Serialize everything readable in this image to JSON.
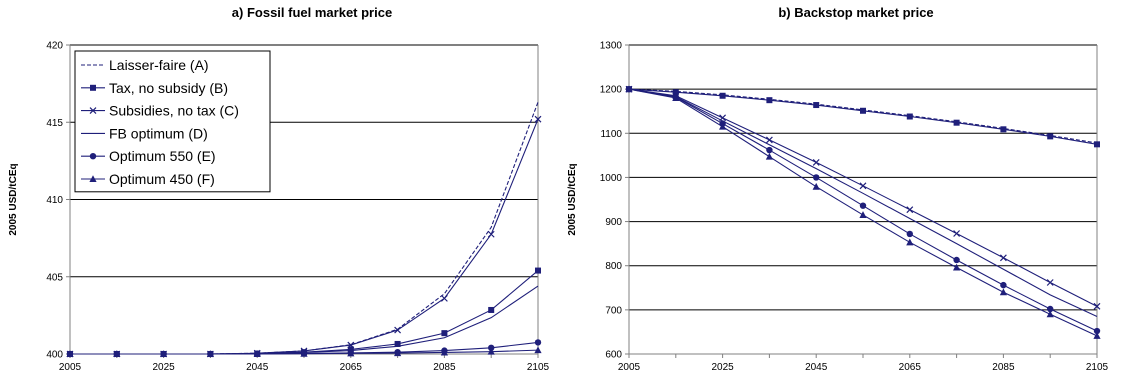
{
  "chart_data": [
    {
      "type": "line",
      "title": "a) Fossil fuel market price",
      "ylabel": "2005 USD/tCEq",
      "xlabel": "",
      "ylim": [
        400,
        420
      ],
      "yticks": [
        400,
        405,
        410,
        415,
        420
      ],
      "xticks": [
        2005,
        2025,
        2045,
        2065,
        2085,
        2105
      ],
      "grid": "horizontal",
      "legend_position": "top-left",
      "x": [
        2005,
        2015,
        2025,
        2035,
        2045,
        2055,
        2065,
        2075,
        2085,
        2095,
        2105
      ],
      "series": [
        {
          "name": "Laisser-faire (A)",
          "style": "dashed",
          "marker": "none",
          "values": [
            400,
            400,
            400,
            400,
            400.05,
            400.2,
            400.6,
            401.6,
            403.9,
            408.2,
            416.3
          ]
        },
        {
          "name": "Tax, no subsidy (B)",
          "style": "solid",
          "marker": "square",
          "values": [
            400,
            400,
            400,
            400,
            400.03,
            400.12,
            400.3,
            400.65,
            401.35,
            402.85,
            405.4
          ]
        },
        {
          "name": "Subsidies, no tax (C)",
          "style": "solid",
          "marker": "x",
          "values": [
            400,
            400,
            400,
            400,
            400.05,
            400.2,
            400.58,
            401.55,
            403.6,
            407.75,
            415.2
          ]
        },
        {
          "name": "FB optimum (D)",
          "style": "solid",
          "marker": "none",
          "values": [
            400,
            400,
            400,
            400,
            400.02,
            400.1,
            400.22,
            400.5,
            401.05,
            402.35,
            404.4
          ]
        },
        {
          "name": "Optimum 550 (E)",
          "style": "solid",
          "marker": "circle",
          "values": [
            400,
            400,
            400,
            400,
            400.01,
            400.04,
            400.07,
            400.12,
            400.22,
            400.4,
            400.75
          ]
        },
        {
          "name": "Optimum 450 (F)",
          "style": "solid",
          "marker": "triangle",
          "values": [
            400,
            400,
            400,
            400,
            400,
            400.02,
            400.04,
            400.06,
            400.1,
            400.15,
            400.25
          ]
        }
      ]
    },
    {
      "type": "line",
      "title": "b) Backstop market price",
      "ylabel": "2005 USD/tCEq",
      "xlabel": "",
      "ylim": [
        600,
        1300
      ],
      "yticks": [
        600,
        700,
        800,
        900,
        1000,
        1100,
        1200,
        1300
      ],
      "xticks": [
        2005,
        2025,
        2045,
        2065,
        2085,
        2105
      ],
      "grid": "horizontal",
      "x": [
        2005,
        2015,
        2025,
        2035,
        2045,
        2055,
        2065,
        2075,
        2085,
        2095,
        2105
      ],
      "series": [
        {
          "style": "dashed",
          "marker": "none",
          "values": [
            1200,
            1195,
            1187,
            1177,
            1166,
            1153,
            1140,
            1126,
            1111,
            1095,
            1078
          ]
        },
        {
          "style": "solid",
          "marker": "square",
          "values": [
            1200,
            1193,
            1185,
            1175,
            1164,
            1151,
            1138,
            1124,
            1109,
            1093,
            1075
          ]
        },
        {
          "style": "solid",
          "marker": "x",
          "values": [
            1200,
            1185,
            1135,
            1085,
            1034,
            981,
            927,
            873,
            818,
            762,
            708
          ]
        },
        {
          "style": "solid",
          "marker": "none",
          "values": [
            1200,
            1183,
            1128,
            1074,
            1020,
            964,
            907,
            850,
            792,
            734,
            685
          ]
        },
        {
          "style": "solid",
          "marker": "circle",
          "values": [
            1200,
            1182,
            1122,
            1062,
            1000,
            936,
            872,
            813,
            756,
            702,
            652
          ]
        },
        {
          "style": "solid",
          "marker": "triangle",
          "values": [
            1200,
            1180,
            1115,
            1047,
            979,
            915,
            853,
            796,
            740,
            690,
            641
          ]
        }
      ]
    }
  ],
  "colors": {
    "line": "#1f1f7a",
    "grid": "#000000",
    "axis": "#808080",
    "text": "#000000"
  }
}
